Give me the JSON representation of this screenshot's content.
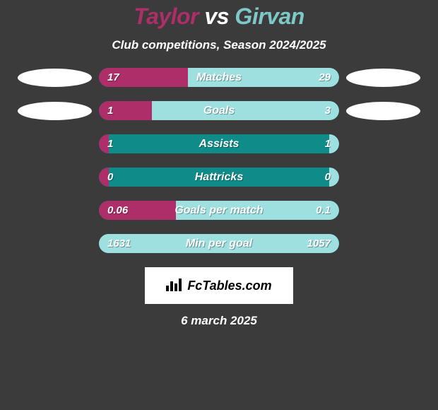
{
  "title": {
    "player1": "Taylor",
    "vs": "vs",
    "player2": "Girvan",
    "player1_color": "#ad2e69",
    "vs_color": "#ffffff",
    "player2_color": "#7cc9c8"
  },
  "subtitle": "Club competitions, Season 2024/2025",
  "subtitle_color": "#ffffff",
  "background_color": "#3b3b3b",
  "bar_track_color": "#0f8c8a",
  "player1_bar_color": "#ad2e69",
  "player2_bar_color": "#9de0df",
  "stats": [
    {
      "label": "Matches",
      "left_value": "17",
      "right_value": "29",
      "left_pct": 37,
      "right_pct": 63,
      "show_ovals": true
    },
    {
      "label": "Goals",
      "left_value": "1",
      "right_value": "3",
      "left_pct": 22,
      "right_pct": 78,
      "show_ovals": true
    },
    {
      "label": "Assists",
      "left_value": "1",
      "right_value": "1",
      "left_pct": 4,
      "right_pct": 4,
      "show_ovals": false
    },
    {
      "label": "Hattricks",
      "left_value": "0",
      "right_value": "0",
      "left_pct": 4,
      "right_pct": 4,
      "show_ovals": false
    },
    {
      "label": "Goals per match",
      "left_value": "0.06",
      "right_value": "0.1",
      "left_pct": 32,
      "right_pct": 68,
      "show_ovals": false
    },
    {
      "label": "Min per goal",
      "left_value": "1631",
      "right_value": "1057",
      "left_pct": 4,
      "right_pct": 100,
      "show_ovals": false
    }
  ],
  "logo": {
    "icon": "📊",
    "text": "FcTables.com"
  },
  "date": "6 march 2025",
  "date_color": "#ffffff",
  "oval_color": "#ffffff"
}
